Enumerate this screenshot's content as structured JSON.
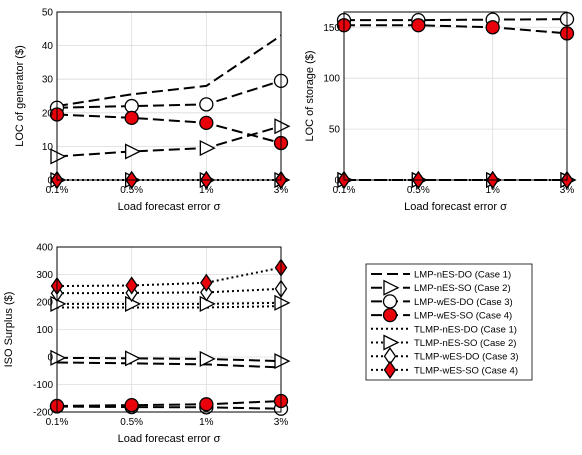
{
  "x_categories": [
    "0.1%",
    "0.5%",
    "1%",
    "3%"
  ],
  "chart_data": [
    {
      "type": "line",
      "xlabel": "Load forecast error σ",
      "ylabel": "LOC of generator ($)",
      "ylim": [
        0,
        50
      ],
      "yticks": [
        "0",
        "10",
        "20",
        "30",
        "40",
        "50"
      ],
      "grid": true,
      "series": [
        {
          "name": "LMP-nES-DO (Case 1)",
          "values": [
            22,
            25.5,
            28,
            43
          ]
        },
        {
          "name": "LMP-nES-SO (Case 2)",
          "values": [
            7,
            8.5,
            9.5,
            16
          ]
        },
        {
          "name": "LMP-wES-DO (Case 3)",
          "values": [
            21.5,
            22,
            22.5,
            29.5
          ]
        },
        {
          "name": "LMP-wES-SO (Case 4)",
          "values": [
            19.5,
            18.5,
            17,
            11
          ]
        },
        {
          "name": "TLMP-nES-DO (Case 1)",
          "values": [
            0,
            0,
            0,
            0
          ]
        },
        {
          "name": "TLMP-nES-SO (Case 2)",
          "values": [
            0,
            0,
            0,
            0
          ]
        },
        {
          "name": "TLMP-wES-DO (Case 3)",
          "values": [
            0,
            0,
            0,
            0
          ]
        },
        {
          "name": "TLMP-wES-SO (Case 4)",
          "values": [
            0,
            0,
            0,
            0
          ]
        }
      ]
    },
    {
      "type": "line",
      "xlabel": "Load forecast error σ",
      "ylabel": "LOC of storage ($)",
      "ylim": [
        0,
        165
      ],
      "yticks": [
        "0",
        "50",
        "100",
        "150"
      ],
      "grid": true,
      "series": [
        {
          "name": "LMP-nES-DO (Case 1)",
          "values": [
            0,
            0,
            0,
            0
          ]
        },
        {
          "name": "LMP-nES-SO (Case 2)",
          "values": [
            0,
            0,
            0,
            0
          ]
        },
        {
          "name": "LMP-wES-DO (Case 3)",
          "values": [
            157,
            157,
            157.5,
            158
          ]
        },
        {
          "name": "LMP-wES-SO (Case 4)",
          "values": [
            152,
            152,
            150,
            144
          ]
        },
        {
          "name": "TLMP-nES-DO (Case 1)",
          "values": [
            0,
            0,
            0,
            0
          ]
        },
        {
          "name": "TLMP-nES-SO (Case 2)",
          "values": [
            0,
            0,
            0,
            0
          ]
        },
        {
          "name": "TLMP-wES-DO (Case 3)",
          "values": [
            0,
            0,
            0,
            0
          ]
        },
        {
          "name": "TLMP-wES-SO (Case 4)",
          "values": [
            0,
            0,
            0,
            0
          ]
        }
      ]
    },
    {
      "type": "line",
      "xlabel": "Load forecast error σ",
      "ylabel": "ISO Surplus ($)",
      "ylim": [
        -200,
        400
      ],
      "yticks": [
        "-200",
        "-100",
        "0",
        "100",
        "200",
        "300",
        "400"
      ],
      "grid": true,
      "series": [
        {
          "name": "LMP-nES-DO (Case 1)",
          "values": [
            -20,
            -23,
            -27,
            -38
          ]
        },
        {
          "name": "LMP-nES-SO (Case 2)",
          "values": [
            -3,
            -5,
            -7,
            -15
          ]
        },
        {
          "name": "LMP-wES-DO (Case 3)",
          "values": [
            -180,
            -182,
            -183,
            -188
          ]
        },
        {
          "name": "LMP-wES-SO (Case 4)",
          "values": [
            -178,
            -175,
            -172,
            -160
          ]
        },
        {
          "name": "TLMP-nES-DO (Case 1)",
          "values": [
            180,
            180,
            180,
            185
          ]
        },
        {
          "name": "TLMP-nES-SO (Case 2)",
          "values": [
            193,
            193,
            193,
            197
          ]
        },
        {
          "name": "TLMP-wES-DO (Case 3)",
          "values": [
            232,
            233,
            235,
            248
          ]
        },
        {
          "name": "TLMP-wES-SO (Case 4)",
          "values": [
            258,
            260,
            270,
            325
          ]
        }
      ]
    }
  ],
  "legend": {
    "entries": [
      {
        "label": "LMP-nES-DO (Case 1)",
        "line": "dashed",
        "marker": "none"
      },
      {
        "label": "LMP-nES-SO (Case 2)",
        "line": "dashed",
        "marker": "triangle-right"
      },
      {
        "label": "LMP-wES-DO (Case 3)",
        "line": "dashed",
        "marker": "circle-open"
      },
      {
        "label": "LMP-wES-SO (Case 4)",
        "line": "dashed",
        "marker": "circle-red"
      },
      {
        "label": "TLMP-nES-DO (Case 1)",
        "line": "dotted",
        "marker": "none"
      },
      {
        "label": "TLMP-nES-SO (Case 2)",
        "line": "dotted",
        "marker": "triangle-right"
      },
      {
        "label": "TLMP-wES-DO (Case 3)",
        "line": "dotted",
        "marker": "diamond-open"
      },
      {
        "label": "TLMP-wES-SO (Case 4)",
        "line": "dotted",
        "marker": "diamond-red"
      }
    ]
  },
  "colors": {
    "marker_fill": "#e8000b",
    "line": "#000000",
    "grid": "#dcdcdc"
  }
}
